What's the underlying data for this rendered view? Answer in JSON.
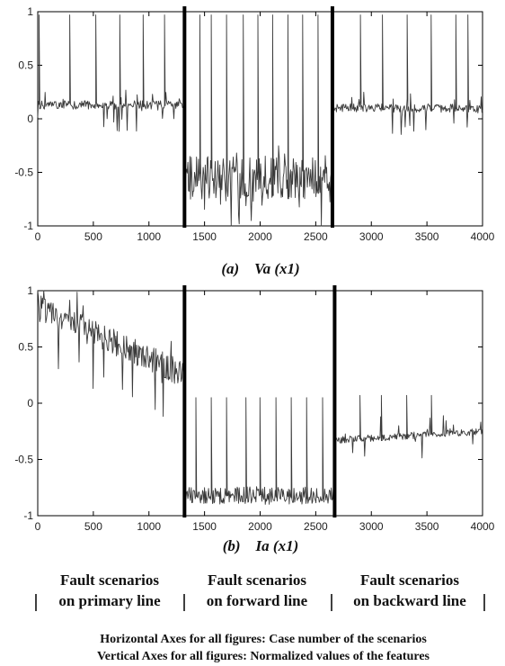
{
  "chart_data": [
    {
      "type": "line",
      "caption": "(a)    Va (x1)",
      "xlim": [
        0,
        4000
      ],
      "ylim": [
        -1,
        1
      ],
      "xticks": [
        0,
        500,
        1000,
        1500,
        2000,
        2500,
        3000,
        3500,
        4000
      ],
      "yticks": [
        -1,
        -0.5,
        0,
        0.5,
        1
      ],
      "ytick_labels": [
        "-1",
        "-0.5",
        "0",
        "0.5",
        "1"
      ],
      "separators": [
        1320,
        2650
      ],
      "segments": [
        {
          "x_range": [
            0,
            1320
          ],
          "baseline": 0.13,
          "noise": 0.04,
          "dips": 0.08,
          "dip_depth": 0.15,
          "spikes": [
            15,
            290,
            520,
            740,
            950,
            1140
          ],
          "spike_to": 0.97
        },
        {
          "x_range": [
            1320,
            2650
          ],
          "baseline": -0.55,
          "noise": 0.2,
          "dips": 0.1,
          "dip_depth": 0.3,
          "spikes": [
            1460,
            1560,
            1700,
            1850,
            1980,
            2110,
            2250,
            2380,
            2520
          ],
          "spike_to": 0.97
        },
        {
          "x_range": [
            2650,
            4000
          ],
          "baseline": 0.1,
          "noise": 0.04,
          "dips": 0.08,
          "dip_depth": 0.15,
          "spikes": [
            2900,
            3100,
            3320,
            3540,
            3760,
            3870
          ],
          "spike_to": 0.97
        }
      ]
    },
    {
      "type": "line",
      "caption": "(b)    Ia (x1)",
      "xlim": [
        0,
        4000
      ],
      "ylim": [
        -1,
        1
      ],
      "xticks": [
        0,
        500,
        1000,
        1500,
        2000,
        2500,
        3000,
        3500,
        4000
      ],
      "yticks": [
        -1,
        -0.5,
        0,
        0.5,
        1
      ],
      "ytick_labels": [
        "-1",
        "-0.5",
        "0",
        "0.5",
        "1"
      ],
      "separators": [
        1320,
        2670
      ],
      "segments": [
        {
          "x_range": [
            0,
            1320
          ],
          "baseline_start": 0.85,
          "baseline_end": 0.25,
          "noise": 0.12,
          "dips": 0.06,
          "dip_depth": 0.3,
          "spikes": [],
          "spike_to": 0.97
        },
        {
          "x_range": [
            1320,
            2670
          ],
          "baseline": -0.82,
          "noise": 0.08,
          "dips": 0.0,
          "dip_depth": 0.0,
          "spikes": [
            1420,
            1560,
            1700,
            1870,
            2000,
            2140,
            2280,
            2420,
            2560
          ],
          "spike_to": 0.05
        },
        {
          "x_range": [
            2670,
            4000
          ],
          "baseline_start": -0.33,
          "baseline_end": -0.25,
          "noise": 0.03,
          "dips": 0.03,
          "dip_depth": 0.2,
          "spikes": [
            2900,
            3090,
            3320,
            3540
          ],
          "spike_to": 0.07
        }
      ]
    }
  ],
  "groups": [
    {
      "line1": "Fault scenarios",
      "line2": "on primary line"
    },
    {
      "line1": "Fault scenarios",
      "line2": "on forward line"
    },
    {
      "line1": "Fault scenarios",
      "line2": "on backward line"
    }
  ],
  "notes": [
    "Horizontal Axes for all figures: Case number of the scenarios",
    "Vertical Axes for all figures: Normalized values of the features"
  ]
}
